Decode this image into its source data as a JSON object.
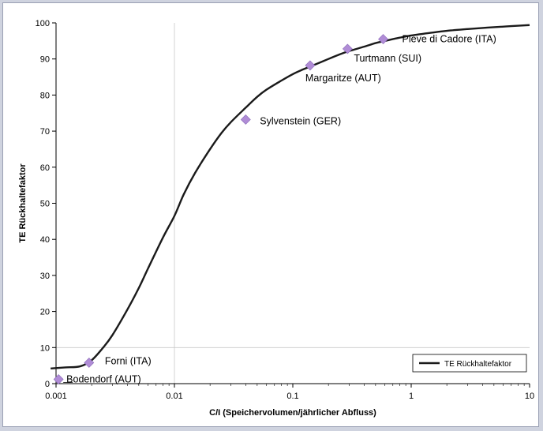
{
  "chart_data": {
    "type": "line",
    "title": "",
    "xlabel": "C/I (Speichervolumen/jährlicher Abfluss)",
    "ylabel": "TE Rückhaltefaktor",
    "xscale": "log",
    "xlim": [
      0.001,
      10
    ],
    "ylim": [
      0,
      100
    ],
    "x_tick_labels": [
      "0.001",
      "0.01",
      "0.1",
      "1",
      "10"
    ],
    "y_tick_labels": [
      "0",
      "10",
      "20",
      "30",
      "40",
      "50",
      "60",
      "70",
      "80",
      "90",
      "100"
    ],
    "grid": "major vertical and horizontal lines at 0.01 and 10",
    "legend_position": "bottom-right",
    "series": [
      {
        "name": "TE Rückhaltefaktor",
        "color": "#1a1a1a",
        "x": [
          0.0009,
          0.0012,
          0.0016,
          0.002,
          0.0025,
          0.003,
          0.004,
          0.005,
          0.006,
          0.008,
          0.01,
          0.012,
          0.015,
          0.02,
          0.025,
          0.03,
          0.04,
          0.05,
          0.06,
          0.08,
          0.1,
          0.12,
          0.15,
          0.2,
          0.25,
          0.3,
          0.4,
          0.5,
          0.6,
          0.8,
          1,
          1.5,
          2,
          3,
          4,
          5,
          7,
          10
        ],
        "y": [
          4.2,
          4.5,
          4.8,
          6.5,
          10.0,
          13.5,
          20.5,
          26.5,
          32.0,
          40.5,
          46.5,
          52.5,
          58.5,
          65.0,
          69.5,
          72.5,
          76.5,
          79.5,
          81.5,
          84.0,
          85.8,
          87.0,
          88.3,
          90.0,
          91.3,
          92.2,
          93.4,
          94.4,
          95.0,
          95.9,
          96.5,
          97.3,
          97.8,
          98.3,
          98.6,
          98.8,
          99.1,
          99.4
        ]
      }
    ],
    "points": [
      {
        "label": "Bodendorf (AUT)",
        "x": 0.00105,
        "y": 1.2
      },
      {
        "label": "Forni (ITA)",
        "x": 0.0019,
        "y": 5.8
      },
      {
        "label": "Sylvenstein (GER)",
        "x": 0.04,
        "y": 73.2
      },
      {
        "label": "Margaritze (AUT)",
        "x": 0.14,
        "y": 88.2
      },
      {
        "label": "Turtmann (SUI)",
        "x": 0.29,
        "y": 92.8
      },
      {
        "label": "Pieve di Cadore (ITA)",
        "x": 0.58,
        "y": 95.5
      }
    ],
    "point_color": "#b08cd6"
  }
}
